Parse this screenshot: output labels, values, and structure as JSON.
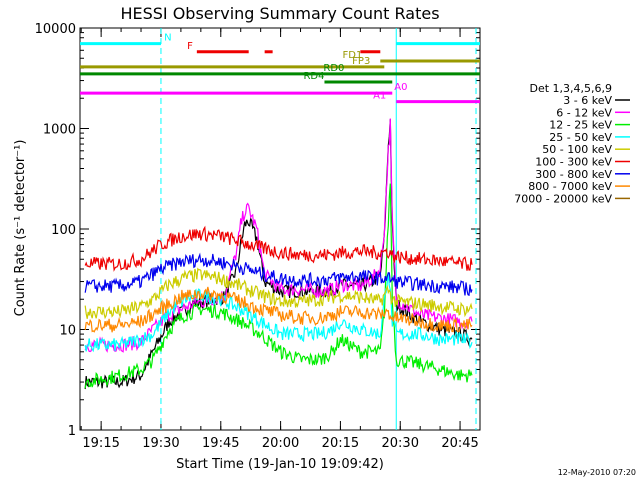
{
  "chart_data": {
    "type": "line",
    "title": "HESSI Observing Summary Count Rates",
    "xlabel": "Start Time (19-Jan-10 19:09:42)",
    "ylabel": "Count Rate (s⁻¹ detector⁻¹)",
    "y_scale": "log",
    "ylim": [
      1,
      10000
    ],
    "xlim_minutes": [
      1149.7,
      1250.0
    ],
    "x_ticks": [
      {
        "min": 1155,
        "label": "19:15"
      },
      {
        "min": 1170,
        "label": "19:30"
      },
      {
        "min": 1185,
        "label": "19:45"
      },
      {
        "min": 1200,
        "label": "20:00"
      },
      {
        "min": 1215,
        "label": "20:15"
      },
      {
        "min": 1230,
        "label": "20:30"
      },
      {
        "min": 1245,
        "label": "20:45"
      }
    ],
    "y_ticks": [
      {
        "val": 1,
        "label": "1"
      },
      {
        "val": 10,
        "label": "10"
      },
      {
        "val": 100,
        "label": "100"
      },
      {
        "val": 1000,
        "label": "1000"
      },
      {
        "val": 10000,
        "label": "10000"
      }
    ],
    "legend": {
      "header": "Det 1,3,4,5,6,9",
      "placement": "right",
      "entries": [
        {
          "label": "3 - 6 keV",
          "color": "#000000"
        },
        {
          "label": "6 - 12 keV",
          "color": "#ff00ff"
        },
        {
          "label": "12 - 25 keV",
          "color": "#00ee00"
        },
        {
          "label": "25 - 50 keV",
          "color": "#00ffff"
        },
        {
          "label": "50 - 100 keV",
          "color": "#cccc00"
        },
        {
          "label": "100 - 300 keV",
          "color": "#ee0000"
        },
        {
          "label": "300 - 800 keV",
          "color": "#0000ee"
        },
        {
          "label": "800 - 7000 keV",
          "color": "#ff8800"
        },
        {
          "label": "7000 - 20000 keV",
          "color": "#996600"
        }
      ]
    },
    "series": [
      {
        "name": "3 - 6 keV",
        "color": "#000000",
        "x": [
          1151,
          1160,
          1165,
          1168,
          1172,
          1178,
          1183,
          1186,
          1189,
          1190,
          1191,
          1192,
          1194,
          1196,
          1200,
          1205,
          1210,
          1213,
          1215,
          1220,
          1223,
          1225,
          1226,
          1227,
          1227.5,
          1228,
          1229,
          1235,
          1240,
          1245,
          1248
        ],
        "y": [
          3,
          3,
          3.5,
          6,
          12,
          18,
          20,
          21,
          40,
          70,
          110,
          120,
          80,
          30,
          24,
          24,
          24,
          25,
          28,
          27,
          30,
          35,
          80,
          700,
          1200,
          100,
          18,
          12,
          10,
          9,
          8
        ]
      },
      {
        "name": "6 - 12 keV",
        "color": "#ff00ff",
        "x": [
          1151,
          1160,
          1165,
          1168,
          1172,
          1178,
          1183,
          1186,
          1189,
          1190,
          1191,
          1192,
          1194,
          1196,
          1200,
          1205,
          1210,
          1213,
          1215,
          1220,
          1223,
          1225,
          1226,
          1227,
          1227.5,
          1228,
          1229,
          1235,
          1240,
          1245,
          1248
        ],
        "y": [
          7,
          7,
          7.5,
          10,
          14,
          18,
          20,
          22,
          60,
          110,
          150,
          160,
          100,
          35,
          25,
          25,
          24,
          25,
          28,
          27,
          32,
          40,
          100,
          600,
          1100,
          120,
          20,
          14,
          13,
          12,
          12
        ]
      },
      {
        "name": "12 - 25 keV",
        "color": "#00ee00",
        "x": [
          1151,
          1160,
          1165,
          1168,
          1172,
          1176,
          1180,
          1185,
          1190,
          1195,
          1200,
          1205,
          1210,
          1213,
          1215,
          1220,
          1225,
          1226,
          1227,
          1227.5,
          1228,
          1229,
          1235,
          1240,
          1245,
          1248
        ],
        "y": [
          3,
          3.5,
          4,
          5,
          10,
          14,
          16,
          15,
          12,
          9,
          6,
          5,
          5,
          6,
          8,
          6,
          6,
          15,
          120,
          300,
          20,
          5,
          4.5,
          4,
          3.5,
          3.5
        ]
      },
      {
        "name": "25 - 50 keV",
        "color": "#00ffff",
        "x": [
          1151,
          1160,
          1165,
          1168,
          1172,
          1176,
          1180,
          1185,
          1190,
          1195,
          1200,
          1205,
          1210,
          1213,
          1215,
          1220,
          1225,
          1227,
          1228,
          1229,
          1235,
          1240,
          1245,
          1248
        ],
        "y": [
          7,
          7,
          8,
          9,
          15,
          20,
          22,
          20,
          16,
          12,
          9,
          9,
          9,
          10,
          12,
          10,
          9,
          40,
          12,
          9,
          9,
          8,
          8,
          7.5
        ]
      },
      {
        "name": "50 - 100 keV",
        "color": "#cccc00",
        "x": [
          1151,
          1160,
          1165,
          1168,
          1172,
          1176,
          1180,
          1185,
          1190,
          1195,
          1200,
          1205,
          1210,
          1213,
          1215,
          1220,
          1225,
          1227,
          1228,
          1229,
          1235,
          1240,
          1245,
          1248
        ],
        "y": [
          15,
          15,
          17,
          20,
          28,
          33,
          35,
          32,
          27,
          22,
          19,
          19,
          20,
          21,
          22,
          21,
          19,
          25,
          20,
          19,
          18,
          17,
          16,
          16
        ]
      },
      {
        "name": "100 - 300 keV",
        "color": "#ee0000",
        "x": [
          1151,
          1160,
          1165,
          1170,
          1175,
          1180,
          1185,
          1190,
          1195,
          1200,
          1205,
          1210,
          1213,
          1215,
          1220,
          1225,
          1227,
          1228,
          1229,
          1235,
          1240,
          1245,
          1248
        ],
        "y": [
          45,
          45,
          50,
          70,
          85,
          90,
          85,
          75,
          65,
          58,
          55,
          55,
          56,
          58,
          60,
          58,
          60,
          55,
          53,
          50,
          48,
          45,
          44
        ]
      },
      {
        "name": "300 - 800 keV",
        "color": "#0000ee",
        "x": [
          1151,
          1160,
          1165,
          1170,
          1175,
          1180,
          1185,
          1190,
          1195,
          1200,
          1205,
          1210,
          1213,
          1215,
          1220,
          1225,
          1227,
          1228,
          1229,
          1235,
          1240,
          1245,
          1248
        ],
        "y": [
          27,
          27,
          30,
          40,
          47,
          50,
          47,
          42,
          36,
          32,
          31,
          31,
          32,
          33,
          34,
          32,
          33,
          31,
          30,
          28,
          27,
          26,
          25
        ]
      },
      {
        "name": "800 - 7000 keV",
        "color": "#ff8800",
        "x": [
          1151,
          1160,
          1165,
          1170,
          1175,
          1180,
          1185,
          1190,
          1195,
          1200,
          1205,
          1210,
          1213,
          1215,
          1220,
          1225,
          1227,
          1228,
          1229,
          1235,
          1240,
          1245,
          1248
        ],
        "y": [
          11,
          11,
          12,
          16,
          21,
          23,
          22,
          19,
          16,
          14,
          13,
          13,
          14,
          15,
          15,
          14,
          15,
          13,
          13,
          12,
          11,
          11,
          11
        ]
      }
    ],
    "event_flags": [
      {
        "label": "N",
        "color": "#00ffff",
        "y": 7000,
        "segments": [
          [
            1149.7,
            1170
          ],
          [
            1229,
            1250
          ]
        ]
      },
      {
        "label": "F",
        "color": "#ee0000",
        "y": 5800,
        "segments": [
          [
            1179,
            1192
          ],
          [
            1196,
            1198
          ],
          [
            1220,
            1225
          ]
        ]
      },
      {
        "label": "FD1",
        "color": "#999900",
        "y": 4700,
        "segments": [
          [
            1225,
            1250
          ]
        ]
      },
      {
        "label": "FP3",
        "color": "#999900",
        "y": 4100,
        "segments": [
          [
            1149.7,
            1226
          ]
        ]
      },
      {
        "label": "RD0",
        "color": "#008800",
        "y": 3500,
        "segments": [
          [
            1149.7,
            1250
          ]
        ]
      },
      {
        "label": "RD4",
        "color": "#008800",
        "y": 2900,
        "segments": [
          [
            1211,
            1228
          ]
        ]
      },
      {
        "label": "A0",
        "color": "#ff00ff",
        "y": 2250,
        "segments": [
          [
            1149.7,
            1228
          ]
        ]
      },
      {
        "label": "A1",
        "color": "#ff00ff",
        "y": 1850,
        "segments": [
          [
            1229,
            1250
          ]
        ]
      }
    ],
    "vertical_markers": [
      {
        "min": 1170,
        "style": "dashed",
        "color": "#00ffff"
      },
      {
        "min": 1229,
        "style": "solid",
        "color": "#00ffff"
      },
      {
        "min": 1249,
        "style": "dashed",
        "color": "#00ffff"
      }
    ],
    "footer_date": "12-May-2010 07:20"
  }
}
